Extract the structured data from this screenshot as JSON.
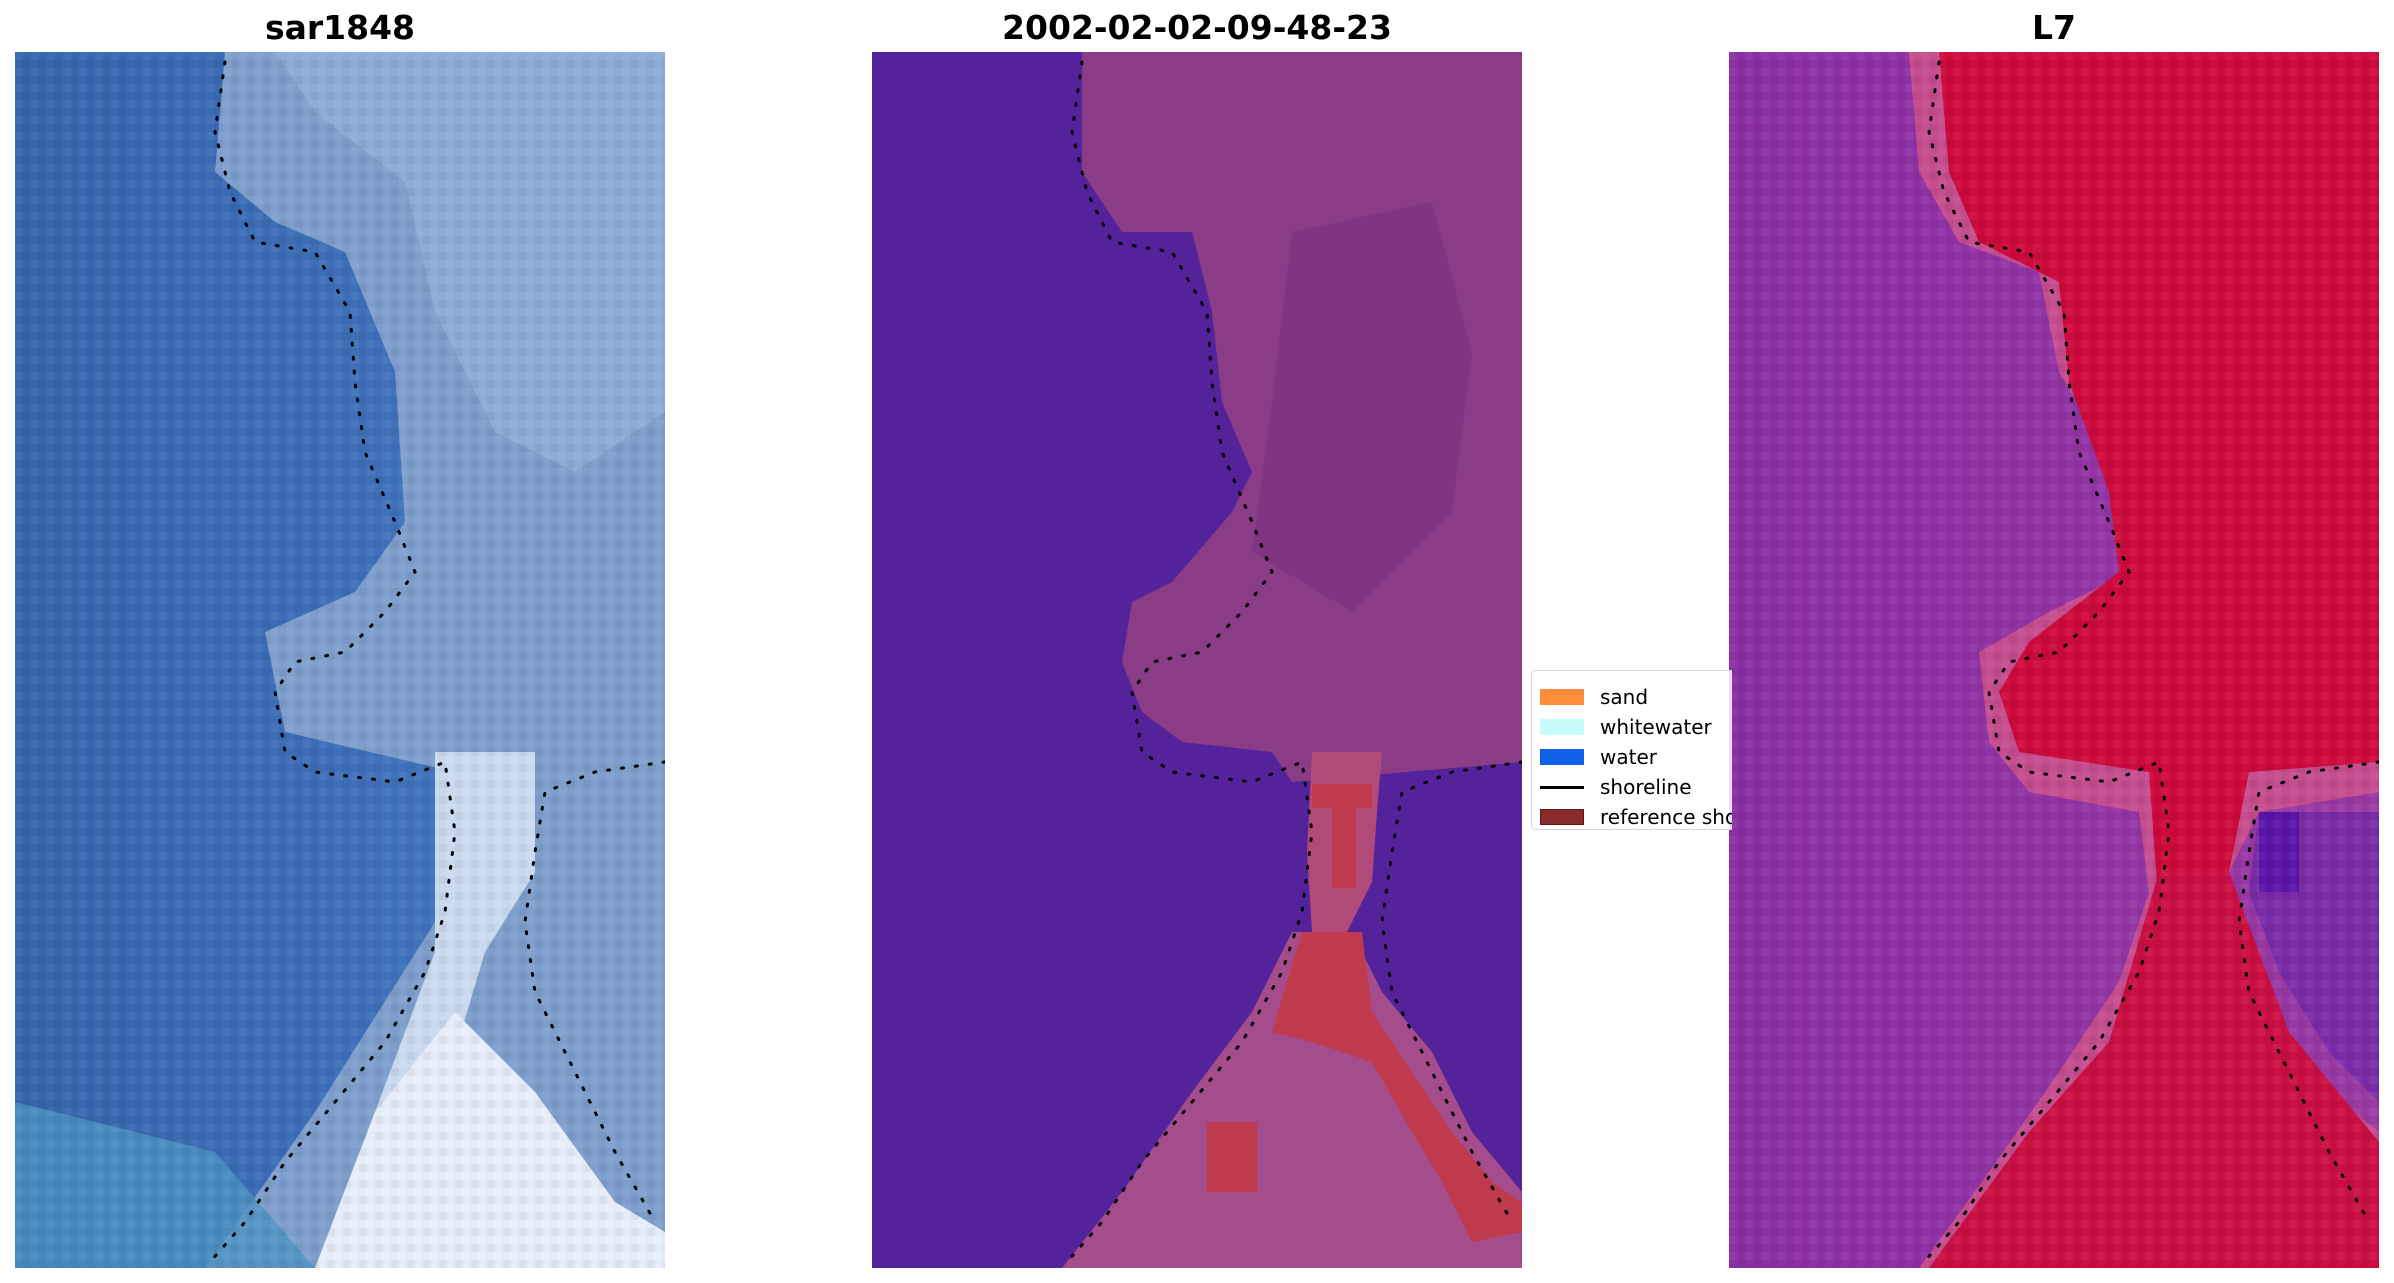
{
  "panels": [
    {
      "title": "sar1848"
    },
    {
      "title": "2002-02-02-09-48-23"
    },
    {
      "title": "L7"
    }
  ],
  "legend": {
    "items": [
      {
        "label": "sand",
        "color": "#ff8c3a",
        "kind": "patch"
      },
      {
        "label": "whitewater",
        "color": "#c8fbfb",
        "kind": "patch"
      },
      {
        "label": "water",
        "color": "#1060e8",
        "kind": "patch"
      },
      {
        "label": "shoreline",
        "color": "#000000",
        "kind": "line"
      },
      {
        "label": "reference shoreline",
        "color": "#8b2a2a",
        "kind": "patch"
      }
    ]
  },
  "colors": {
    "rgb_water": "#3a6bb8",
    "rgb_land": "#8fb0d6",
    "rgb_surf": "#e8eef8",
    "class_water": "#54229a",
    "class_land": "#8a3d86",
    "class_sand_overlay": "#bf3a4c",
    "ndwi_low": "#8e35a6",
    "ndwi_high": "#cc0a3c",
    "shoreline_dots": "#000000"
  }
}
